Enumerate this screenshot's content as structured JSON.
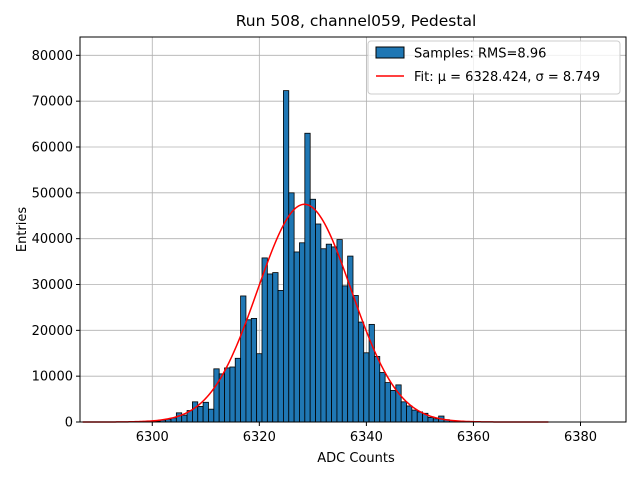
{
  "chart_data": {
    "type": "bar",
    "title": "Run 508, channel059, Pedestal",
    "xlabel": "ADC Counts",
    "ylabel": "Entries",
    "xlim": [
      6286.5,
      6388.5
    ],
    "ylim": [
      0,
      84000
    ],
    "xticks": [
      6300,
      6320,
      6340,
      6360,
      6380
    ],
    "yticks": [
      0,
      10000,
      20000,
      30000,
      40000,
      50000,
      60000,
      70000,
      80000
    ],
    "grid": true,
    "legend_position": "top-right",
    "colors": {
      "bars": "#1f77b4",
      "bar_edge": "#000000",
      "fit": "#ff0000",
      "grid": "#b0b0b0"
    },
    "histogram": {
      "name": "Samples: RMS=8.96",
      "bin_width": 1,
      "bins": [
        {
          "x": 6301,
          "value": 200
        },
        {
          "x": 6302,
          "value": 400
        },
        {
          "x": 6303,
          "value": 600
        },
        {
          "x": 6304,
          "value": 900
        },
        {
          "x": 6305,
          "value": 2000
        },
        {
          "x": 6306,
          "value": 1500
        },
        {
          "x": 6307,
          "value": 2500
        },
        {
          "x": 6308,
          "value": 4400
        },
        {
          "x": 6309,
          "value": 3400
        },
        {
          "x": 6310,
          "value": 4300
        },
        {
          "x": 6311,
          "value": 2800
        },
        {
          "x": 6312,
          "value": 11600
        },
        {
          "x": 6313,
          "value": 10500
        },
        {
          "x": 6314,
          "value": 11800
        },
        {
          "x": 6315,
          "value": 12000
        },
        {
          "x": 6316,
          "value": 13900
        },
        {
          "x": 6317,
          "value": 27500
        },
        {
          "x": 6318,
          "value": 22300
        },
        {
          "x": 6319,
          "value": 22600
        },
        {
          "x": 6320,
          "value": 14900
        },
        {
          "x": 6321,
          "value": 35800
        },
        {
          "x": 6322,
          "value": 32300
        },
        {
          "x": 6323,
          "value": 32600
        },
        {
          "x": 6324,
          "value": 28700
        },
        {
          "x": 6325,
          "value": 72300
        },
        {
          "x": 6326,
          "value": 50000
        },
        {
          "x": 6327,
          "value": 37100
        },
        {
          "x": 6328,
          "value": 39100
        },
        {
          "x": 6329,
          "value": 63000
        },
        {
          "x": 6330,
          "value": 48600
        },
        {
          "x": 6331,
          "value": 43200
        },
        {
          "x": 6332,
          "value": 37800
        },
        {
          "x": 6333,
          "value": 38800
        },
        {
          "x": 6334,
          "value": 38200
        },
        {
          "x": 6335,
          "value": 39800
        },
        {
          "x": 6336,
          "value": 29700
        },
        {
          "x": 6337,
          "value": 36200
        },
        {
          "x": 6338,
          "value": 27600
        },
        {
          "x": 6339,
          "value": 21800
        },
        {
          "x": 6340,
          "value": 15100
        },
        {
          "x": 6341,
          "value": 21300
        },
        {
          "x": 6342,
          "value": 14300
        },
        {
          "x": 6343,
          "value": 10800
        },
        {
          "x": 6344,
          "value": 8600
        },
        {
          "x": 6345,
          "value": 6900
        },
        {
          "x": 6346,
          "value": 8100
        },
        {
          "x": 6347,
          "value": 4400
        },
        {
          "x": 6348,
          "value": 3500
        },
        {
          "x": 6349,
          "value": 2600
        },
        {
          "x": 6350,
          "value": 2200
        },
        {
          "x": 6351,
          "value": 1900
        },
        {
          "x": 6352,
          "value": 1000
        },
        {
          "x": 6353,
          "value": 700
        },
        {
          "x": 6354,
          "value": 1300
        },
        {
          "x": 6355,
          "value": 500
        },
        {
          "x": 6356,
          "value": 300
        }
      ]
    },
    "fit": {
      "name": "Fit: μ = 6328.424, σ = 8.749",
      "type": "gaussian",
      "mu": 6328.424,
      "sigma": 8.749,
      "amplitude": 47500,
      "x_range": [
        6287,
        6374
      ]
    }
  }
}
